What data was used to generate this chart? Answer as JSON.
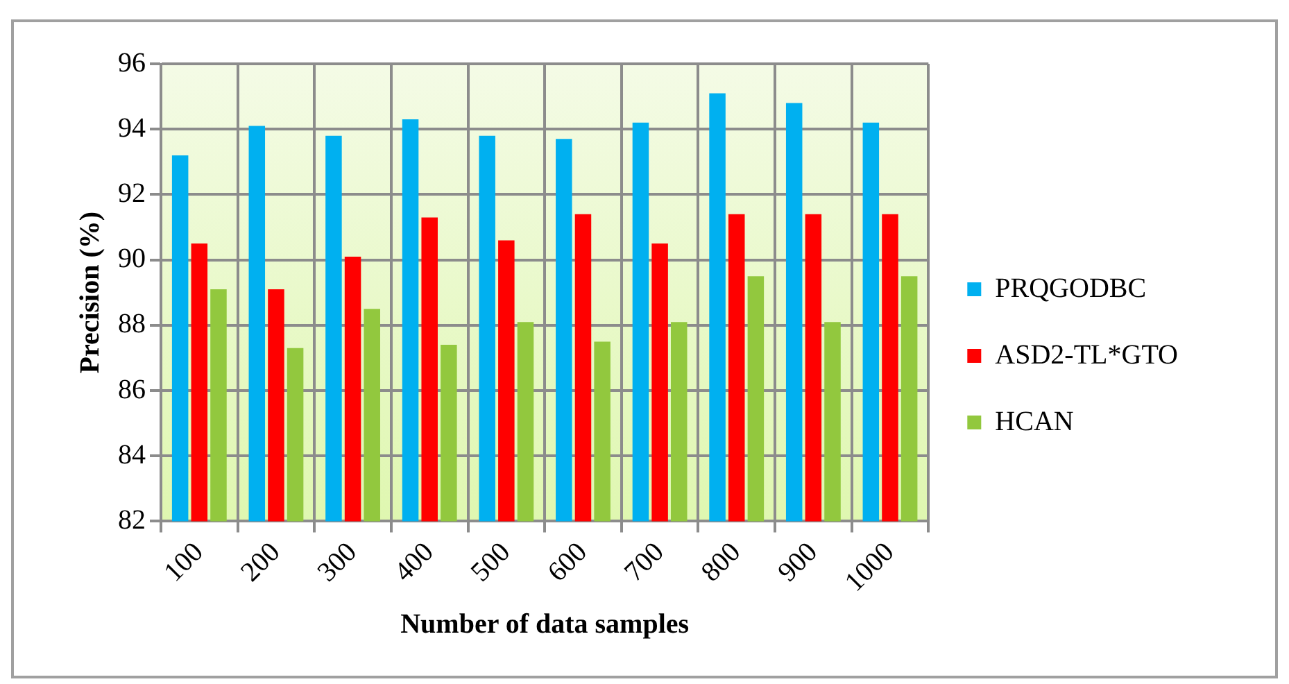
{
  "chart_data": {
    "type": "bar",
    "xlabel": "Number of data samples",
    "ylabel": "Precision (%)",
    "categories": [
      "100",
      "200",
      "300",
      "400",
      "500",
      "600",
      "700",
      "800",
      "900",
      "1000"
    ],
    "series": [
      {
        "name": "PRQGODBC",
        "color": "#00b0f0",
        "values": [
          93.2,
          94.1,
          93.8,
          94.3,
          93.8,
          93.7,
          94.2,
          95.1,
          94.8,
          94.2
        ]
      },
      {
        "name": "ASD2-TL*GTO",
        "color": "#ff0000",
        "values": [
          90.5,
          89.1,
          90.1,
          91.3,
          90.6,
          91.4,
          90.5,
          91.4,
          91.4,
          91.4
        ]
      },
      {
        "name": "HCAN",
        "color": "#92c83e",
        "values": [
          89.1,
          87.3,
          88.5,
          87.4,
          88.1,
          87.5,
          88.1,
          89.5,
          88.1,
          89.5
        ]
      }
    ],
    "ylim": [
      82,
      96
    ],
    "yticks": [
      82,
      84,
      86,
      88,
      90,
      92,
      94,
      96
    ],
    "grid": true,
    "legend": "right"
  }
}
